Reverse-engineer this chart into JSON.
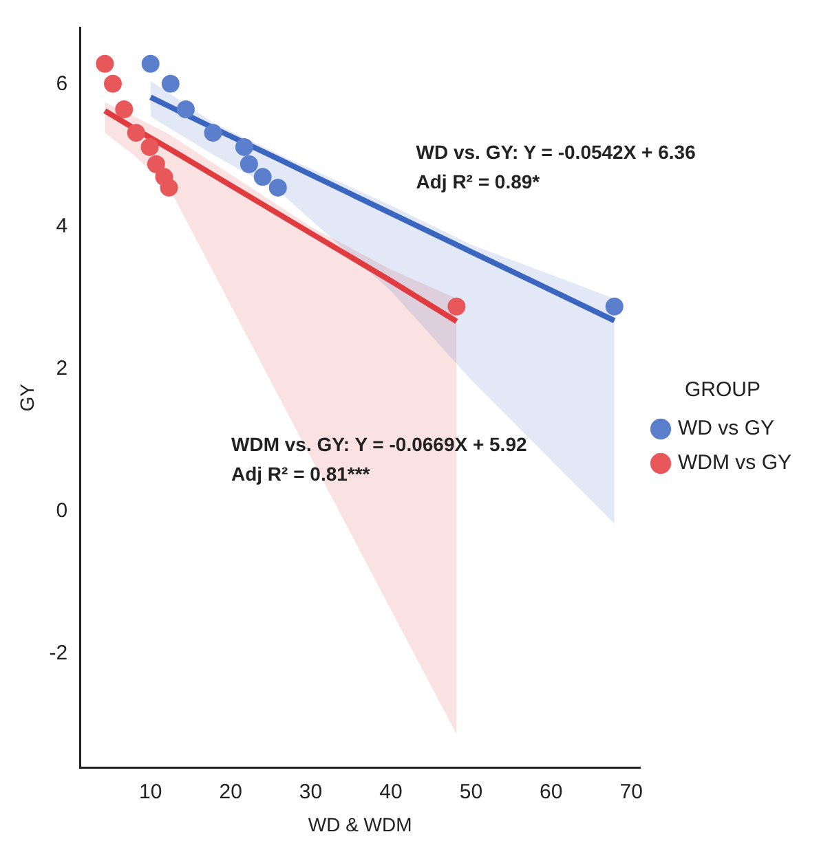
{
  "chart_data": {
    "type": "scatter",
    "xlabel": "WD & WDM",
    "ylabel": "GY",
    "legend_title": "GROUP",
    "legend": "right",
    "grid": false,
    "marker": "circle",
    "xlim": [
      1.2,
      71.1
    ],
    "xticks": [
      10,
      20,
      30,
      40,
      50,
      60,
      70
    ],
    "ylim": [
      -3.6,
      6.8
    ],
    "yticks": [
      -2,
      0,
      2,
      4,
      6
    ],
    "annotations": [
      "WD vs. GY: Y = -0.0542X + 6.36",
      "Adj R² = 0.89*",
      "WDM vs. GY: Y = -0.0669X + 5.92",
      "Adj R² = 0.81***"
    ],
    "series": [
      {
        "type": "line",
        "marker": "none",
        "color": "#3a66bf",
        "x": [
          10,
          18,
          26,
          40,
          50,
          67.9
        ],
        "values": [
          5.82,
          5.38,
          4.95,
          4.19,
          3.65,
          2.68
        ],
        "lower": [
          5.55,
          5.0,
          4.5,
          3.1,
          1.85,
          -0.17
        ],
        "upper": [
          6.05,
          5.45,
          5.02,
          4.3,
          3.75,
          2.99
        ]
      },
      {
        "type": "line",
        "marker": "none",
        "color": "#e03c3f",
        "x": [
          4.3,
          8,
          12.3,
          30,
          40,
          48.2
        ],
        "values": [
          5.63,
          5.38,
          5.1,
          3.91,
          3.24,
          2.67
        ],
        "lower": [
          5.32,
          5.0,
          4.55,
          0.76,
          -1.38,
          -3.13
        ],
        "upper": [
          5.75,
          5.55,
          5.3,
          4.0,
          3.4,
          2.99
        ]
      },
      {
        "name": "WD vs GY",
        "color": "#5b7fcc",
        "x": [
          10.0,
          12.5,
          14.4,
          17.8,
          21.7,
          22.3,
          24.0,
          25.9,
          67.9
        ],
        "values": [
          6.29,
          6.01,
          5.65,
          5.32,
          5.12,
          4.88,
          4.7,
          4.55,
          2.88
        ]
      },
      {
        "name": "WDM vs GY",
        "color": "#e8585b",
        "x": [
          4.3,
          5.3,
          6.7,
          8.2,
          9.9,
          10.7,
          11.7,
          12.3,
          48.2
        ],
        "values": [
          6.29,
          6.01,
          5.65,
          5.32,
          5.12,
          4.88,
          4.7,
          4.55,
          2.88
        ]
      }
    ]
  }
}
